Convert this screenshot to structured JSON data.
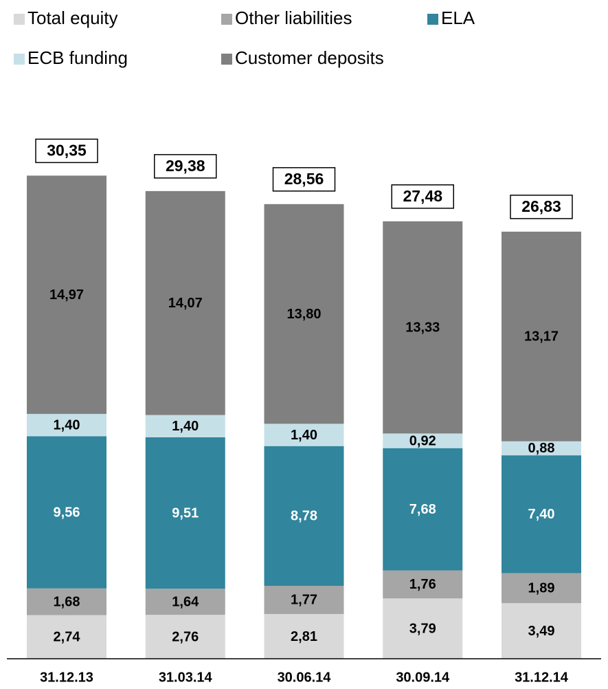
{
  "chart_data": {
    "type": "stacked_bar",
    "categories": [
      "31.12.13",
      "31.03.14",
      "30.06.14",
      "30.09.14",
      "31.12.14"
    ],
    "series": [
      {
        "name": "Total equity",
        "color": "#d9d9d9",
        "values": [
          2.74,
          2.76,
          2.81,
          3.79,
          3.49
        ],
        "value_labels": [
          "2,74",
          "2,76",
          "2,81",
          "3,79",
          "3,49"
        ]
      },
      {
        "name": "Other liabilities",
        "color": "#a6a6a6",
        "values": [
          1.68,
          1.64,
          1.77,
          1.76,
          1.89
        ],
        "value_labels": [
          "1,68",
          "1,64",
          "1,77",
          "1,76",
          "1,89"
        ]
      },
      {
        "name": "ELA",
        "color": "#31859c",
        "values": [
          9.56,
          9.51,
          8.78,
          7.68,
          7.4
        ],
        "value_labels": [
          "9,56",
          "9,51",
          "8,78",
          "7,68",
          "7,40"
        ]
      },
      {
        "name": "ECB funding",
        "color": "#c6e0e8",
        "values": [
          1.4,
          1.4,
          1.4,
          0.92,
          0.88
        ],
        "value_labels": [
          "1,40",
          "1,40",
          "1,40",
          "0,92",
          "0,88"
        ]
      },
      {
        "name": "Customer deposits",
        "color": "#808080",
        "values": [
          14.97,
          14.07,
          13.8,
          13.33,
          13.17
        ],
        "value_labels": [
          "14,97",
          "14,07",
          "13,80",
          "13,33",
          "13,17"
        ]
      }
    ],
    "totals": [
      30.35,
      29.38,
      28.56,
      27.48,
      26.83
    ],
    "total_labels": [
      "30,35",
      "29,38",
      "28,56",
      "27,48",
      "26,83"
    ],
    "ylim": [
      0,
      40
    ]
  }
}
